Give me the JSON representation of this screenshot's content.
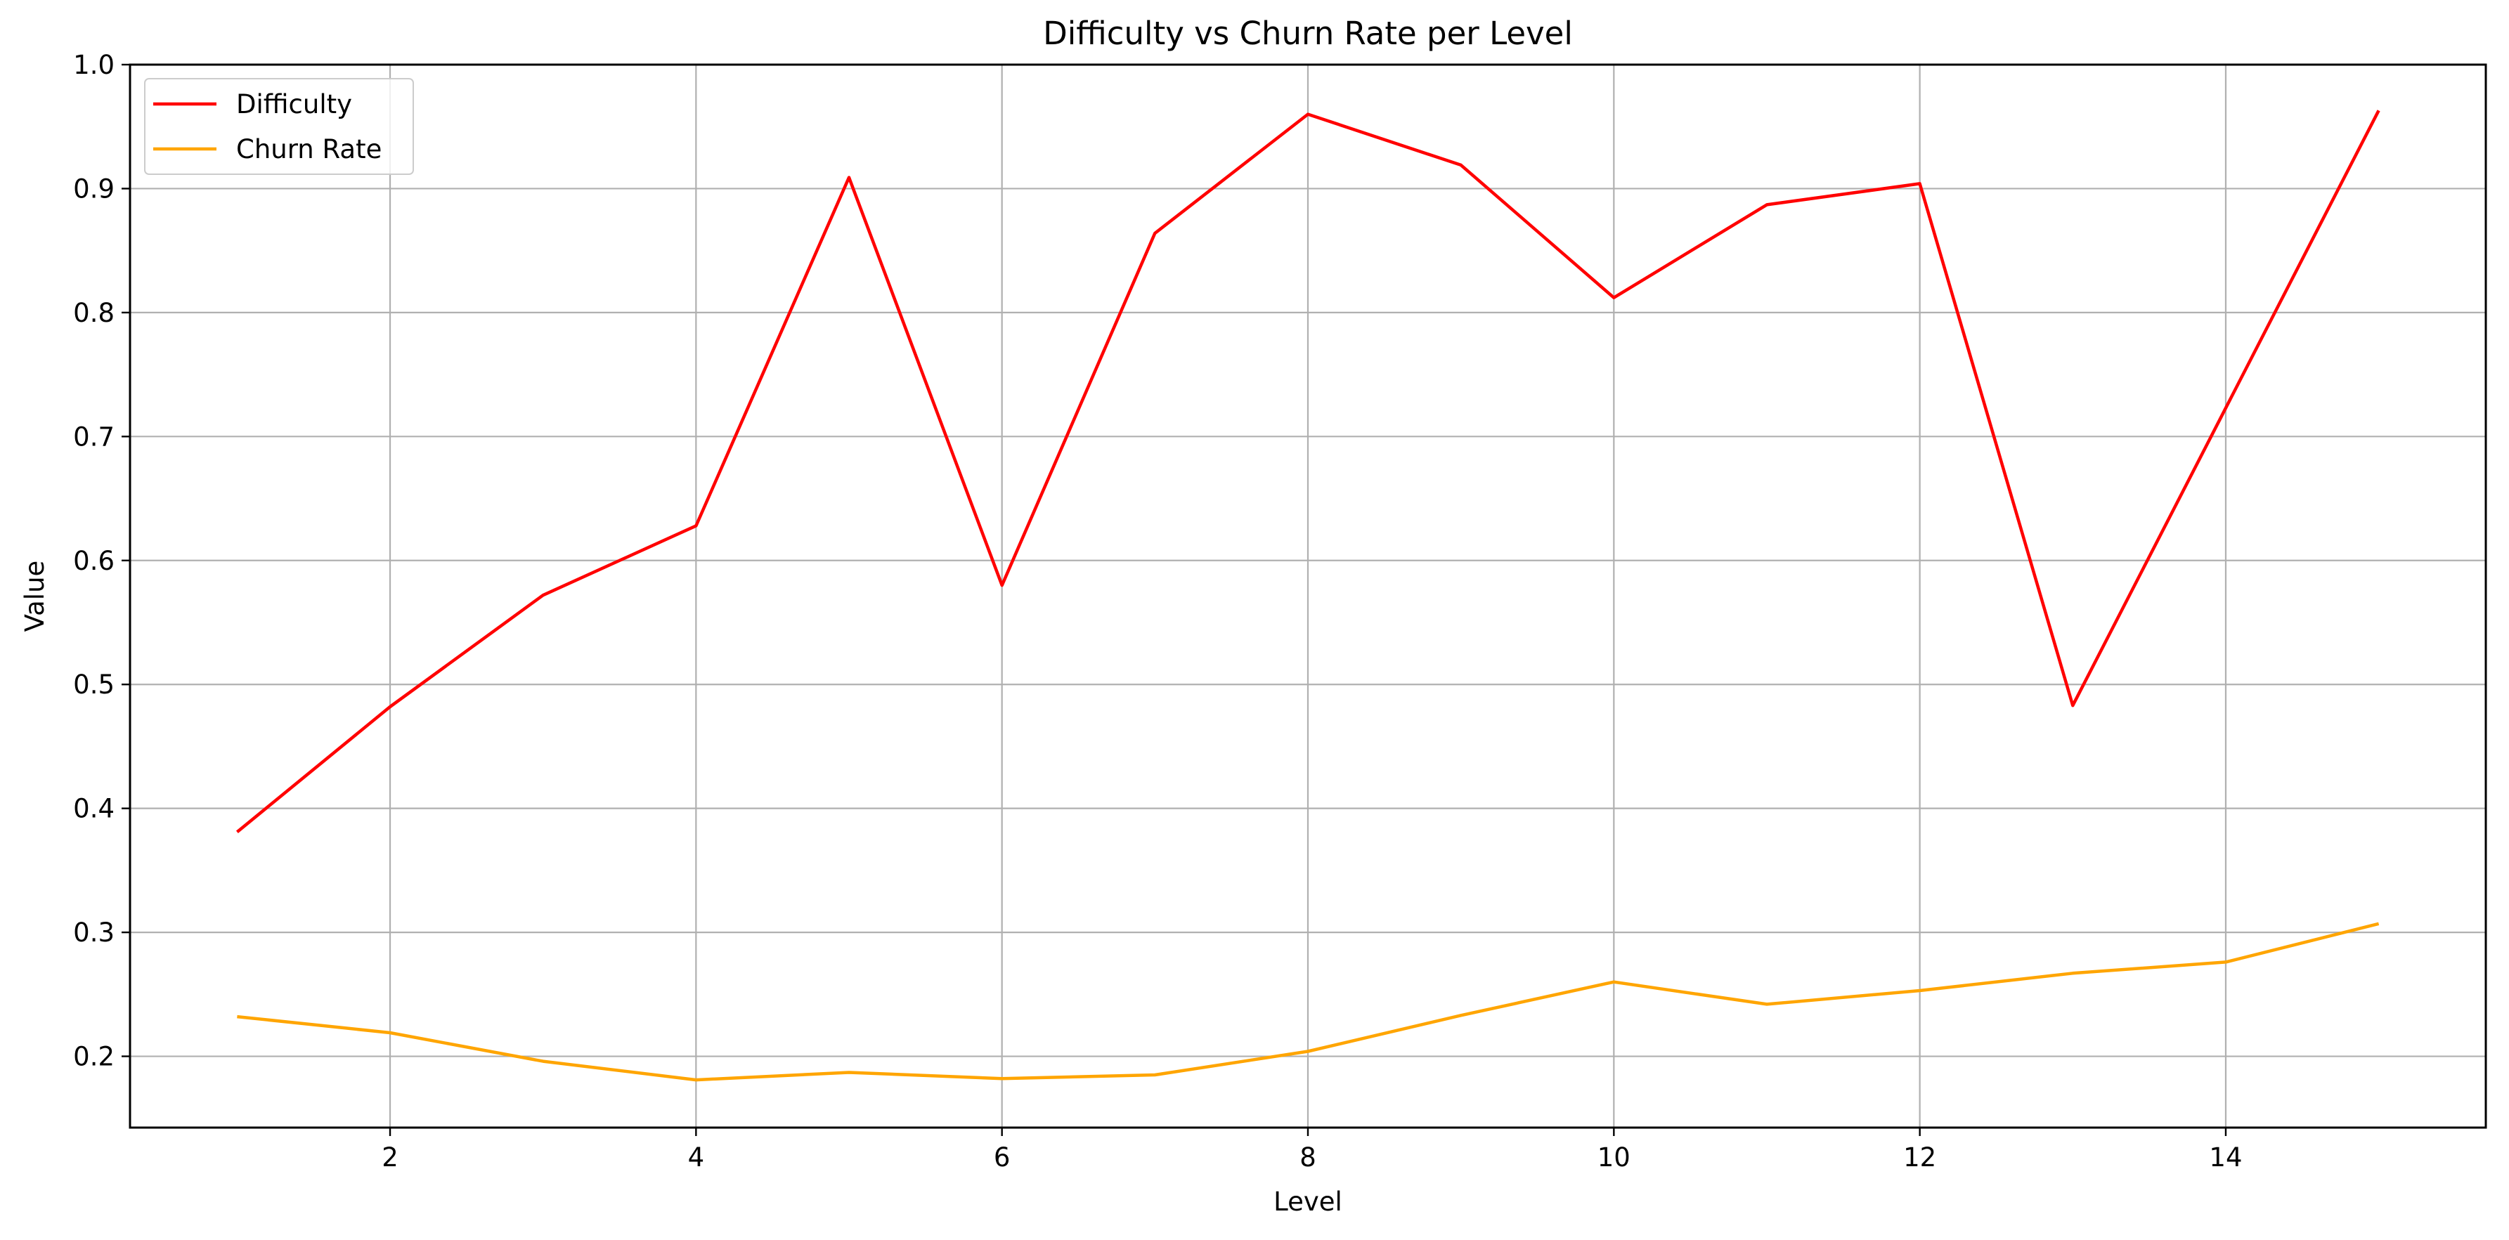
{
  "chart_data": {
    "type": "line",
    "title": "Difficulty vs Churn Rate per Level",
    "xlabel": "Level",
    "ylabel": "Value",
    "x": [
      1,
      2,
      3,
      4,
      5,
      6,
      7,
      8,
      9,
      10,
      11,
      12,
      13,
      14,
      15
    ],
    "series": [
      {
        "name": "Difficulty",
        "color": "#ff0000",
        "values": [
          0.381,
          0.482,
          0.572,
          0.628,
          0.909,
          0.58,
          0.864,
          0.96,
          0.919,
          0.812,
          0.887,
          0.904,
          0.483,
          0.723,
          0.963
        ]
      },
      {
        "name": "Churn Rate",
        "color": "#ffa500",
        "values": [
          0.232,
          0.219,
          0.196,
          0.181,
          0.187,
          0.182,
          0.185,
          0.204,
          0.233,
          0.26,
          0.242,
          0.253,
          0.267,
          0.276,
          0.307
        ]
      }
    ],
    "xlim": [
      0.3,
      15.7
    ],
    "ylim": [
      0.1425,
      1.0
    ],
    "xticks": [
      2,
      4,
      6,
      8,
      10,
      12,
      14
    ],
    "yticks": [
      0.2,
      0.3,
      0.4,
      0.5,
      0.6,
      0.7,
      0.8,
      0.9,
      1.0
    ],
    "ytick_labels": [
      "0.2",
      "0.3",
      "0.4",
      "0.5",
      "0.6",
      "0.7",
      "0.8",
      "0.9",
      "1.0"
    ],
    "grid": true,
    "grid_color": "#b0b0b0",
    "legend_position": "upper-left"
  }
}
